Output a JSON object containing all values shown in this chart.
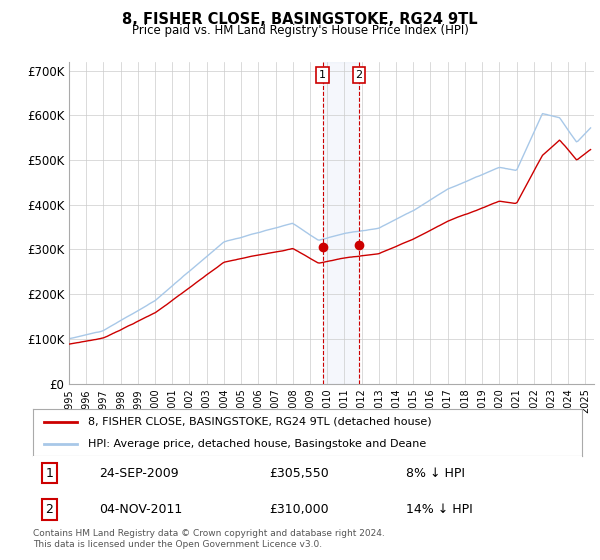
{
  "title": "8, FISHER CLOSE, BASINGSTOKE, RG24 9TL",
  "subtitle": "Price paid vs. HM Land Registry's House Price Index (HPI)",
  "background_color": "#ffffff",
  "grid_color": "#cccccc",
  "hpi_color": "#a8c8e8",
  "price_color": "#cc0000",
  "marker_color": "#cc0000",
  "annotation_bg": "#ddeeff",
  "annotation_border": "#cc0000",
  "ylim": [
    0,
    720000
  ],
  "yticks": [
    0,
    100000,
    200000,
    300000,
    400000,
    500000,
    600000,
    700000
  ],
  "ytick_labels": [
    "£0",
    "£100K",
    "£200K",
    "£300K",
    "£400K",
    "£500K",
    "£600K",
    "£700K"
  ],
  "transactions": [
    {
      "num": 1,
      "date": "24-SEP-2009",
      "price": 305550,
      "hpi_diff": "8% ↓ HPI",
      "x_year": 2009.73
    },
    {
      "num": 2,
      "date": "04-NOV-2011",
      "price": 310000,
      "hpi_diff": "14% ↓ HPI",
      "x_year": 2011.84
    }
  ],
  "legend_entry1": "8, FISHER CLOSE, BASINGSTOKE, RG24 9TL (detached house)",
  "legend_entry2": "HPI: Average price, detached house, Basingstoke and Deane",
  "footnote": "Contains HM Land Registry data © Crown copyright and database right 2024.\nThis data is licensed under the Open Government Licence v3.0.",
  "xmin": 1995.0,
  "xmax": 2025.5
}
